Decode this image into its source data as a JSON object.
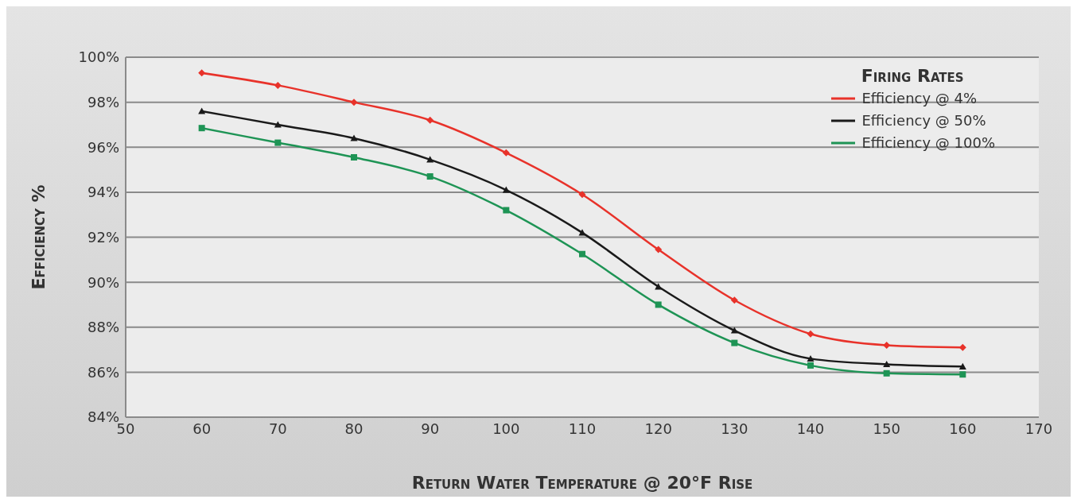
{
  "chart_data": {
    "type": "line",
    "xlabel": "Return Water Temperature @ 20°F Rise",
    "ylabel": "Efficiency %",
    "legend_title": "Firing Rates",
    "x": [
      60,
      70,
      80,
      90,
      100,
      110,
      120,
      130,
      140,
      150,
      160
    ],
    "series": [
      {
        "name": "Efficiency @ 4%",
        "color": "#e8322a",
        "marker": "diamond",
        "values": [
          99.3,
          98.75,
          98.0,
          97.2,
          95.75,
          93.9,
          91.45,
          89.2,
          87.7,
          87.2,
          87.1
        ]
      },
      {
        "name": "Efficiency @ 50%",
        "color": "#1a1a1a",
        "marker": "triangle",
        "values": [
          97.6,
          97.0,
          96.4,
          95.45,
          94.1,
          92.2,
          89.8,
          87.85,
          86.6,
          86.35,
          86.25
        ]
      },
      {
        "name": "Efficiency @ 100%",
        "color": "#1e9455",
        "marker": "square",
        "values": [
          96.85,
          96.2,
          95.55,
          94.7,
          93.2,
          91.25,
          89.0,
          87.3,
          86.3,
          85.95,
          85.9
        ]
      }
    ],
    "xlim": [
      50,
      170
    ],
    "xticks": [
      50,
      60,
      70,
      80,
      90,
      100,
      110,
      120,
      130,
      140,
      150,
      160,
      170
    ],
    "ylim": [
      84,
      100
    ],
    "yticks": [
      {
        "value": 84,
        "label": "84%"
      },
      {
        "value": 86,
        "label": "86%"
      },
      {
        "value": 88,
        "label": "88%"
      },
      {
        "value": 90,
        "label": "90%"
      },
      {
        "value": 92,
        "label": "92%"
      },
      {
        "value": 94,
        "label": "94%"
      },
      {
        "value": 96,
        "label": "96%"
      },
      {
        "value": 98,
        "label": "98%"
      },
      {
        "value": 100,
        "label": "100%"
      }
    ],
    "grid": "y",
    "legend": "top right",
    "line_style": "solid"
  }
}
